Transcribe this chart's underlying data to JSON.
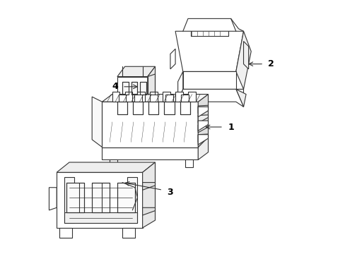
{
  "background_color": "#ffffff",
  "line_color": "#333333",
  "line_width": 0.8
}
